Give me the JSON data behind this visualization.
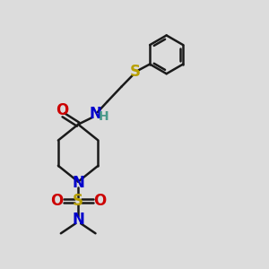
{
  "bg_color": "#dcdcdc",
  "line_color": "#1a1a1a",
  "bond_width": 1.8,
  "fig_size": [
    3.0,
    3.0
  ],
  "dpi": 100,
  "colors": {
    "N": "#0000cc",
    "O": "#cc0000",
    "S": "#b8a000",
    "H": "#4a9a8a",
    "C": "#1a1a1a"
  }
}
